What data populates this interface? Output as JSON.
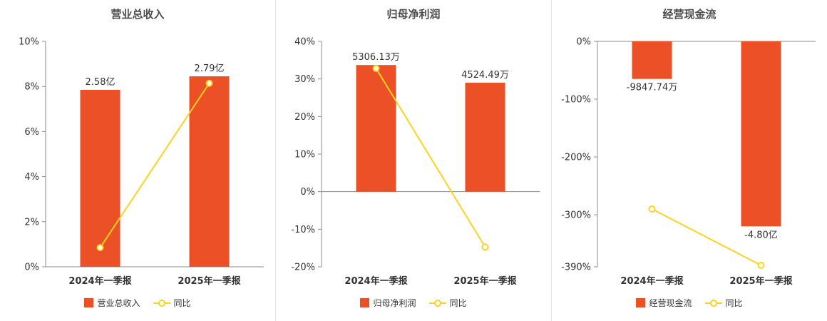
{
  "style": {
    "bar_color": "#ec5026",
    "line_color": "#ffd21e",
    "axis_color": "#8c8c8c",
    "divider_color": "#e3e3e3",
    "background": "#ffffff"
  },
  "chart_data": [
    {
      "type": "bar",
      "title": "营业总收入",
      "categories": [
        "2024年一季报",
        "2025年一季报"
      ],
      "bars": {
        "name": "营业总收入",
        "labels": [
          "2.58亿",
          "2.79亿"
        ],
        "values_pct": [
          7.85,
          8.45
        ]
      },
      "line": {
        "name": "同比",
        "values_pct": [
          0.85,
          8.14
        ]
      },
      "ylim": [
        0,
        10
      ],
      "yticks": [
        {
          "value": 0,
          "label": "0%"
        },
        {
          "value": 2,
          "label": "2%"
        },
        {
          "value": 4,
          "label": "4%"
        },
        {
          "value": 6,
          "label": "6%"
        },
        {
          "value": 8,
          "label": "8%"
        },
        {
          "value": 10,
          "label": "10%"
        }
      ],
      "legend": [
        "营业总收入",
        "同比"
      ],
      "legend_position": "bottom",
      "grid": false
    },
    {
      "type": "bar",
      "title": "归母净利润",
      "categories": [
        "2024年一季报",
        "2025年一季报"
      ],
      "bars": {
        "name": "归母净利润",
        "labels": [
          "5306.13万",
          "4524.49万"
        ],
        "values_pct": [
          33.7,
          29.0
        ]
      },
      "line": {
        "name": "同比",
        "values_pct": [
          32.8,
          -14.73
        ]
      },
      "ylim": [
        -20,
        40
      ],
      "yticks": [
        {
          "value": -20,
          "label": "-20%"
        },
        {
          "value": -10,
          "label": "-10%"
        },
        {
          "value": 0,
          "label": "0%"
        },
        {
          "value": 10,
          "label": "10%"
        },
        {
          "value": 20,
          "label": "20%"
        },
        {
          "value": 30,
          "label": "30%"
        },
        {
          "value": 40,
          "label": "40%"
        }
      ],
      "legend": [
        "归母净利润",
        "同比"
      ],
      "legend_position": "bottom",
      "grid": false
    },
    {
      "type": "bar",
      "title": "经营现金流",
      "categories": [
        "2024年一季报",
        "2025年一季报"
      ],
      "bars": {
        "name": "经营现金流",
        "labels": [
          "-9847.74万",
          "-4.80亿"
        ],
        "values_pct": [
          -65.0,
          -320.0
        ]
      },
      "line": {
        "name": "同比",
        "values_pct": [
          -290.0,
          -387.4
        ]
      },
      "ylim": [
        -390,
        0
      ],
      "yticks": [
        {
          "value": 0,
          "label": "0%"
        },
        {
          "value": -100,
          "label": "-100%"
        },
        {
          "value": -200,
          "label": "-200%"
        },
        {
          "value": -300,
          "label": "-300%"
        },
        {
          "value": -390,
          "label": "-390%"
        }
      ],
      "legend": [
        "经营现金流",
        "同比"
      ],
      "legend_position": "bottom",
      "grid": false
    }
  ]
}
